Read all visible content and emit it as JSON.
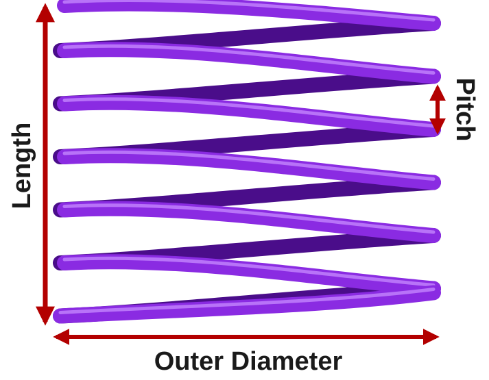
{
  "labels": {
    "length": "Length",
    "pitch": "Pitch",
    "outer_diameter": "Outer Diameter"
  },
  "colors": {
    "spring": "#8a2be2",
    "spring_dark": "#4a0d8a",
    "spring_highlight": "#c78cff",
    "arrow": "#b30000"
  },
  "spring": {
    "coil_count": 6
  }
}
